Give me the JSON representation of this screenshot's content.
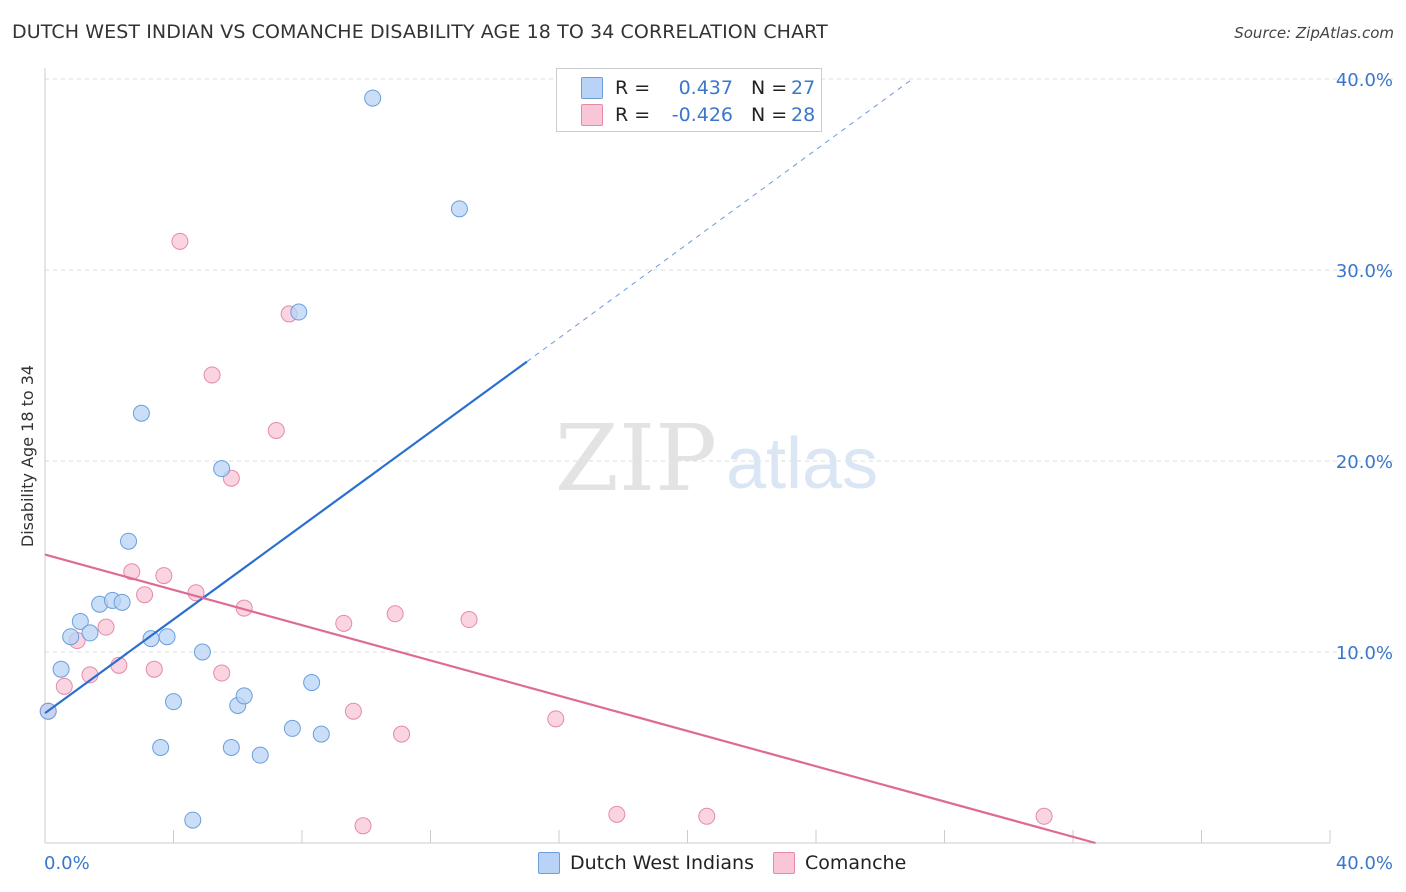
{
  "title": "DUTCH WEST INDIAN VS COMANCHE DISABILITY AGE 18 TO 34 CORRELATION CHART",
  "source": "Source: ZipAtlas.com",
  "watermark": {
    "zip": "ZIP",
    "atlas": "atlas"
  },
  "legend_top": [
    {
      "r_label": "R =",
      "r_value": "0.437",
      "n_label": "N =",
      "n_value": "27"
    },
    {
      "r_label": "R =",
      "r_value": "-0.426",
      "n_label": "N =",
      "n_value": "28"
    }
  ],
  "legend_bottom": [
    "Dutch West Indians",
    "Comanche"
  ],
  "colors": {
    "blue_fill": "#b8d3f5",
    "blue_stroke": "#6a9fdc",
    "blue_line": "#2a6fcf",
    "pink_fill": "#f8c6d6",
    "pink_stroke": "#e68aa8",
    "pink_line": "#de6b93",
    "axis_text": "#3a77cc",
    "grid": "#dddddd"
  },
  "chart_data": {
    "type": "scatter",
    "title": "DUTCH WEST INDIAN VS COMANCHE DISABILITY AGE 18 TO 34 CORRELATION CHART",
    "xlabel": "",
    "ylabel": "Disability Age 18 to 34",
    "xlim": [
      0,
      40
    ],
    "ylim": [
      0,
      40
    ],
    "x_tick_labels": [
      "0.0%",
      "40.0%"
    ],
    "y_ticks": [
      10,
      20,
      30,
      40
    ],
    "y_tick_labels": [
      "10.0%",
      "20.0%",
      "30.0%",
      "40.0%"
    ],
    "grid": true,
    "legend_position": "top-center",
    "series": [
      {
        "name": "Dutch West Indians",
        "r": 0.437,
        "n": 27,
        "points": [
          [
            0.1,
            6.9
          ],
          [
            0.5,
            9.1
          ],
          [
            0.8,
            10.8
          ],
          [
            1.1,
            11.6
          ],
          [
            1.4,
            11.0
          ],
          [
            1.7,
            12.5
          ],
          [
            2.1,
            12.7
          ],
          [
            2.4,
            12.6
          ],
          [
            2.6,
            15.8
          ],
          [
            3.0,
            22.5
          ],
          [
            3.3,
            10.7
          ],
          [
            3.6,
            5.0
          ],
          [
            3.8,
            10.8
          ],
          [
            4.0,
            7.4
          ],
          [
            4.6,
            1.2
          ],
          [
            4.9,
            10.0
          ],
          [
            5.5,
            19.6
          ],
          [
            5.8,
            5.0
          ],
          [
            6.0,
            7.2
          ],
          [
            6.2,
            7.7
          ],
          [
            6.7,
            4.6
          ],
          [
            7.7,
            6.0
          ],
          [
            7.9,
            27.8
          ],
          [
            8.3,
            8.4
          ],
          [
            8.6,
            5.7
          ],
          [
            10.2,
            39.0
          ],
          [
            12.9,
            33.2
          ]
        ],
        "trend": {
          "x": [
            0.0,
            15.0
          ],
          "y": [
            6.8,
            25.2
          ],
          "dashed_to": [
            27.0,
            40.0
          ]
        }
      },
      {
        "name": "Comanche",
        "r": -0.426,
        "n": 28,
        "points": [
          [
            0.1,
            6.9
          ],
          [
            0.6,
            8.2
          ],
          [
            1.0,
            10.6
          ],
          [
            1.4,
            8.8
          ],
          [
            1.9,
            11.3
          ],
          [
            2.3,
            9.3
          ],
          [
            2.7,
            14.2
          ],
          [
            3.1,
            13.0
          ],
          [
            3.4,
            9.1
          ],
          [
            3.7,
            14.0
          ],
          [
            4.2,
            31.5
          ],
          [
            4.7,
            13.1
          ],
          [
            5.2,
            24.5
          ],
          [
            5.5,
            8.9
          ],
          [
            5.8,
            19.1
          ],
          [
            6.2,
            12.3
          ],
          [
            7.2,
            21.6
          ],
          [
            7.6,
            27.7
          ],
          [
            9.3,
            11.5
          ],
          [
            9.6,
            6.9
          ],
          [
            9.9,
            0.9
          ],
          [
            10.9,
            12.0
          ],
          [
            11.1,
            5.7
          ],
          [
            13.2,
            11.7
          ],
          [
            15.9,
            6.5
          ],
          [
            17.8,
            1.5
          ],
          [
            20.6,
            1.4
          ],
          [
            31.1,
            1.4
          ]
        ],
        "trend": {
          "x": [
            0.0,
            32.7
          ],
          "y": [
            15.1,
            0.0
          ]
        }
      }
    ]
  }
}
